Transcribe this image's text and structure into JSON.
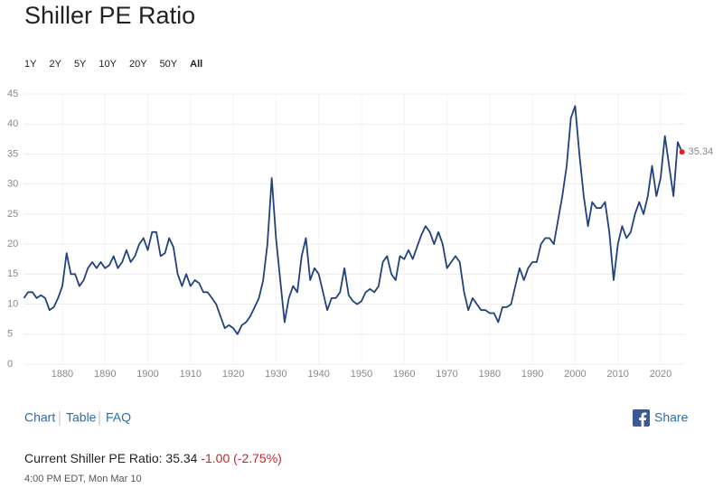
{
  "header": {
    "title": "Shiller PE Ratio",
    "ranges": [
      "1Y",
      "2Y",
      "5Y",
      "10Y",
      "20Y",
      "50Y",
      "All"
    ],
    "active_range": "All"
  },
  "chart_data": {
    "type": "line",
    "x": [
      1871,
      1872,
      1873,
      1874,
      1875,
      1876,
      1877,
      1878,
      1879,
      1880,
      1881,
      1882,
      1883,
      1884,
      1885,
      1886,
      1887,
      1888,
      1889,
      1890,
      1891,
      1892,
      1893,
      1894,
      1895,
      1896,
      1897,
      1898,
      1899,
      1900,
      1901,
      1902,
      1903,
      1904,
      1905,
      1906,
      1907,
      1908,
      1909,
      1910,
      1911,
      1912,
      1913,
      1914,
      1915,
      1916,
      1917,
      1918,
      1919,
      1920,
      1921,
      1922,
      1923,
      1924,
      1925,
      1926,
      1927,
      1928,
      1929,
      1930,
      1931,
      1932,
      1933,
      1934,
      1935,
      1936,
      1937,
      1938,
      1939,
      1940,
      1941,
      1942,
      1943,
      1944,
      1945,
      1946,
      1947,
      1948,
      1949,
      1950,
      1951,
      1952,
      1953,
      1954,
      1955,
      1956,
      1957,
      1958,
      1959,
      1960,
      1961,
      1962,
      1963,
      1964,
      1965,
      1966,
      1967,
      1968,
      1969,
      1970,
      1971,
      1972,
      1973,
      1974,
      1975,
      1976,
      1977,
      1978,
      1979,
      1980,
      1981,
      1982,
      1983,
      1984,
      1985,
      1986,
      1987,
      1988,
      1989,
      1990,
      1991,
      1992,
      1993,
      1994,
      1995,
      1996,
      1997,
      1998,
      1999,
      2000,
      2001,
      2002,
      2003,
      2004,
      2005,
      2006,
      2007,
      2008,
      2009,
      2010,
      2011,
      2012,
      2013,
      2014,
      2015,
      2016,
      2017,
      2018,
      2019,
      2020,
      2021,
      2022,
      2023,
      2024,
      2025
    ],
    "series": [
      {
        "name": "Shiller PE Ratio",
        "color": "#21427d",
        "values": [
          11,
          12,
          12,
          11,
          11.5,
          11,
          9,
          9.5,
          11,
          13,
          18.5,
          15,
          15,
          13,
          14,
          16,
          17,
          16,
          17,
          16,
          16.5,
          18,
          16,
          17,
          19,
          17,
          18,
          20,
          21,
          19,
          22,
          22,
          18,
          18.5,
          21,
          19.5,
          15,
          13,
          15,
          13,
          14,
          13.5,
          12,
          12,
          11,
          10,
          8,
          6,
          6.5,
          6,
          5,
          6.5,
          7,
          8,
          9.5,
          11,
          14,
          20,
          31,
          21,
          14,
          7,
          11,
          13,
          12,
          18,
          21,
          14,
          16,
          15,
          12,
          9,
          11,
          11,
          12,
          16,
          11.5,
          10.5,
          10,
          10.5,
          12,
          12.5,
          12,
          13,
          17,
          18,
          15,
          14,
          18,
          17.5,
          19,
          17.5,
          19.5,
          21.5,
          23,
          22,
          20,
          22,
          20,
          16,
          17,
          18,
          17,
          12,
          9,
          11,
          10,
          9,
          9,
          8.5,
          8.5,
          7,
          9.5,
          9.5,
          10,
          13,
          16,
          14,
          16,
          17,
          17,
          20,
          21,
          21,
          20,
          24,
          28,
          33,
          41,
          43,
          35,
          28,
          23,
          27,
          26,
          26,
          27,
          22,
          14,
          20,
          23,
          21,
          22,
          25,
          27,
          25,
          28,
          33,
          28,
          31,
          38,
          33,
          28,
          37,
          35.34
        ]
      }
    ],
    "xlim": [
      1871,
      2025.5
    ],
    "ylim": [
      0,
      45
    ],
    "xticks": [
      1880,
      1890,
      1900,
      1910,
      1920,
      1930,
      1940,
      1950,
      1960,
      1970,
      1980,
      1990,
      2000,
      2010,
      2020
    ],
    "yticks": [
      0,
      5,
      10,
      15,
      20,
      25,
      30,
      35,
      40,
      45
    ],
    "grid": true,
    "marker_color": "#e0202a"
  },
  "footer": {
    "tabs": [
      "Chart",
      "Table",
      "FAQ"
    ],
    "share": "Share",
    "current_label": "Current Shiller PE Ratio:",
    "change": "-1.00 (-2.75%)",
    "timestamp": "4:00 PM EDT, Mon Mar 10"
  }
}
